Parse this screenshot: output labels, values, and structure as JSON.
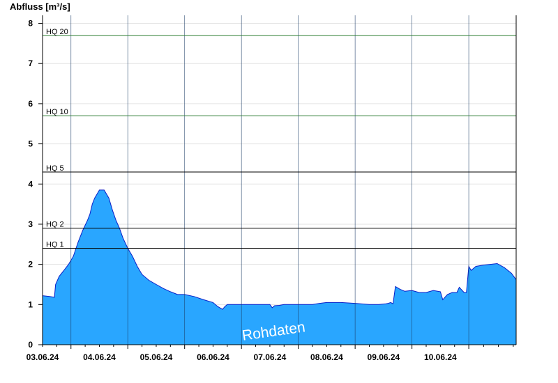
{
  "chart_data": {
    "type": "area",
    "ylabel": "Abfluss [m³/s]",
    "ylim": [
      0,
      8.2
    ],
    "yticks": [
      0,
      1,
      2,
      3,
      4,
      5,
      6,
      7,
      8
    ],
    "xlim": [
      "2024-06-02T12:00",
      "2024-06-10T20:00"
    ],
    "day_boundaries": [
      "2024-06-03T00:00",
      "2024-06-04T00:00",
      "2024-06-05T00:00",
      "2024-06-06T00:00",
      "2024-06-07T00:00",
      "2024-06-08T00:00",
      "2024-06-09T00:00",
      "2024-06-10T00:00"
    ],
    "x_tick_labels": [
      "03.06.24",
      "04.06.24",
      "05.06.24",
      "06.06.24",
      "07.06.24",
      "08.06.24",
      "09.06.24",
      "10.06.24"
    ],
    "grid": true,
    "colors": {
      "fill": "#29a6ff",
      "outline": "#0a1fc8",
      "hq_low": "#000000",
      "hq_high": "#2e7d32",
      "grid": "#e3e3e3"
    },
    "thresholds": [
      {
        "label": "HQ 1",
        "value": 2.4,
        "color": "#000000"
      },
      {
        "label": "HQ 2",
        "value": 2.9,
        "color": "#000000"
      },
      {
        "label": "HQ 5",
        "value": 4.3,
        "color": "#000000"
      },
      {
        "label": "HQ 10",
        "value": 5.7,
        "color": "#2e7d32"
      },
      {
        "label": "HQ 20",
        "value": 7.7,
        "color": "#2e7d32"
      }
    ],
    "watermark": "Rohdaten",
    "series": [
      {
        "x": [
          "2024-06-02T12:00",
          "2024-06-02T15:00",
          "2024-06-02T17:00",
          "2024-06-02T17:30",
          "2024-06-02T19:00",
          "2024-06-02T21:00",
          "2024-06-02T23:00",
          "2024-06-03T01:00",
          "2024-06-03T03:00",
          "2024-06-03T05:00",
          "2024-06-03T07:00",
          "2024-06-03T08:00",
          "2024-06-03T09:00",
          "2024-06-03T10:00",
          "2024-06-03T11:00",
          "2024-06-03T12:00",
          "2024-06-03T14:00",
          "2024-06-03T16:00",
          "2024-06-03T17:30",
          "2024-06-03T19:00",
          "2024-06-03T20:30",
          "2024-06-03T22:00",
          "2024-06-04T00:00",
          "2024-06-04T02:00",
          "2024-06-04T04:00",
          "2024-06-04T06:00",
          "2024-06-04T09:00",
          "2024-06-04T12:00",
          "2024-06-04T15:00",
          "2024-06-04T18:00",
          "2024-06-04T21:00",
          "2024-06-05T00:00",
          "2024-06-05T04:00",
          "2024-06-05T08:00",
          "2024-06-05T12:00",
          "2024-06-05T14:00",
          "2024-06-05T16:00",
          "2024-06-05T17:00",
          "2024-06-05T18:00",
          "2024-06-05T19:00",
          "2024-06-05T21:00",
          "2024-06-06T00:00",
          "2024-06-06T06:00",
          "2024-06-06T12:00",
          "2024-06-06T13:00",
          "2024-06-06T14:00",
          "2024-06-06T16:00",
          "2024-06-06T18:00",
          "2024-06-06T20:00",
          "2024-06-07T00:00",
          "2024-06-07T06:00",
          "2024-06-07T09:00",
          "2024-06-07T12:00",
          "2024-06-07T18:00",
          "2024-06-08T00:00",
          "2024-06-08T06:00",
          "2024-06-08T10:00",
          "2024-06-08T13:00",
          "2024-06-08T14:00",
          "2024-06-08T15:00",
          "2024-06-08T16:00",
          "2024-06-08T17:00",
          "2024-06-08T19:00",
          "2024-06-08T21:00",
          "2024-06-09T00:00",
          "2024-06-09T03:00",
          "2024-06-09T06:00",
          "2024-06-09T09:00",
          "2024-06-09T12:00",
          "2024-06-09T13:00",
          "2024-06-09T15:00",
          "2024-06-09T17:00",
          "2024-06-09T19:00",
          "2024-06-09T20:00",
          "2024-06-09T22:00",
          "2024-06-09T23:00",
          "2024-06-10T00:00",
          "2024-06-10T01:00",
          "2024-06-10T03:00",
          "2024-06-10T06:00",
          "2024-06-10T09:00",
          "2024-06-10T12:00",
          "2024-06-10T15:00",
          "2024-06-10T18:00",
          "2024-06-10T20:00"
        ],
        "values": [
          1.22,
          1.2,
          1.18,
          1.5,
          1.7,
          1.85,
          2.0,
          2.2,
          2.55,
          2.85,
          3.1,
          3.25,
          3.5,
          3.65,
          3.75,
          3.85,
          3.85,
          3.65,
          3.35,
          3.1,
          2.9,
          2.65,
          2.4,
          2.2,
          1.95,
          1.75,
          1.6,
          1.5,
          1.4,
          1.32,
          1.25,
          1.25,
          1.2,
          1.12,
          1.05,
          0.95,
          0.88,
          0.95,
          1.0,
          1.0,
          1.0,
          1.0,
          1.0,
          1.0,
          0.92,
          0.97,
          0.98,
          1.0,
          1.0,
          1.0,
          1.0,
          1.03,
          1.05,
          1.05,
          1.03,
          1.0,
          1.0,
          1.02,
          1.03,
          1.05,
          1.02,
          1.45,
          1.38,
          1.33,
          1.35,
          1.3,
          1.3,
          1.35,
          1.32,
          1.12,
          1.25,
          1.3,
          1.3,
          1.43,
          1.3,
          1.3,
          1.95,
          1.85,
          1.95,
          1.98,
          2.0,
          2.02,
          1.92,
          1.78,
          1.62
        ]
      }
    ]
  }
}
